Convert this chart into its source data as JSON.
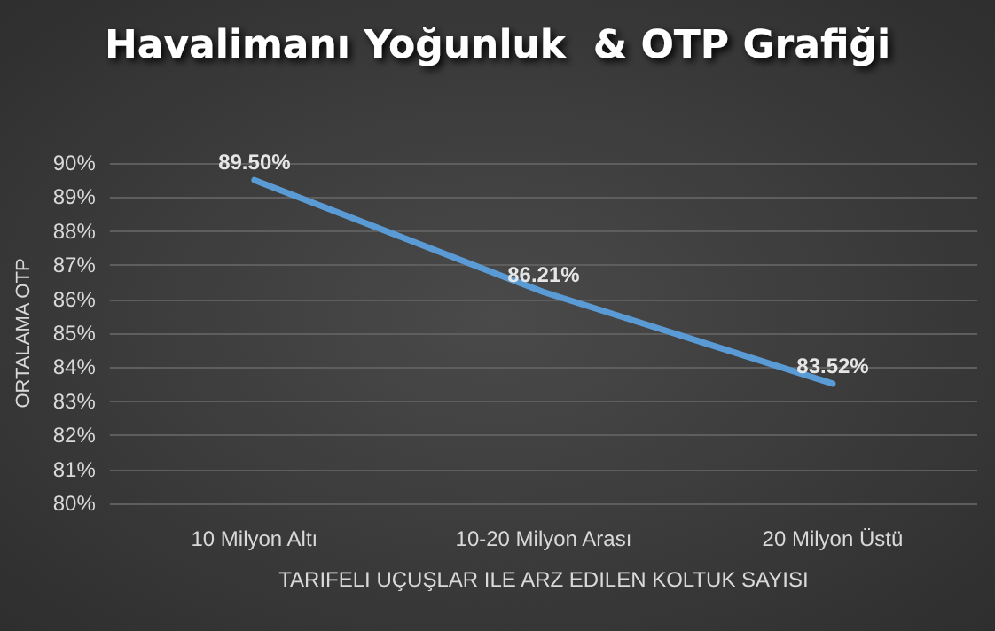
{
  "chart_data": {
    "type": "line",
    "title": "Havalimanı Yoğunluk  & OTP Grafiği",
    "xlabel": "TARIFELI UÇUŞLAR ILE ARZ EDILEN KOLTUK SAYISI",
    "ylabel": "ORTALAMA OTP",
    "categories": [
      "10 Milyon Altı",
      "10-20 Milyon Arası",
      "20 Milyon Üstü"
    ],
    "series": [
      {
        "color": "#5b9bd5",
        "values": [
          89.5,
          86.21,
          83.52
        ],
        "value_labels": [
          "89.50%",
          "86.21%",
          "83.52%"
        ]
      }
    ],
    "ylim": [
      80,
      90
    ],
    "yticks": [
      {
        "value": 80,
        "label": "80%"
      },
      {
        "value": 81,
        "label": "81%"
      },
      {
        "value": 82,
        "label": "82%"
      },
      {
        "value": 83,
        "label": "83%"
      },
      {
        "value": 84,
        "label": "84%"
      },
      {
        "value": 85,
        "label": "85%"
      },
      {
        "value": 86,
        "label": "86%"
      },
      {
        "value": 87,
        "label": "87%"
      },
      {
        "value": 88,
        "label": "88%"
      },
      {
        "value": 89,
        "label": "89%"
      },
      {
        "value": 90,
        "label": "90%"
      }
    ],
    "grid": "y",
    "marker": "none",
    "line_style": "solid"
  }
}
